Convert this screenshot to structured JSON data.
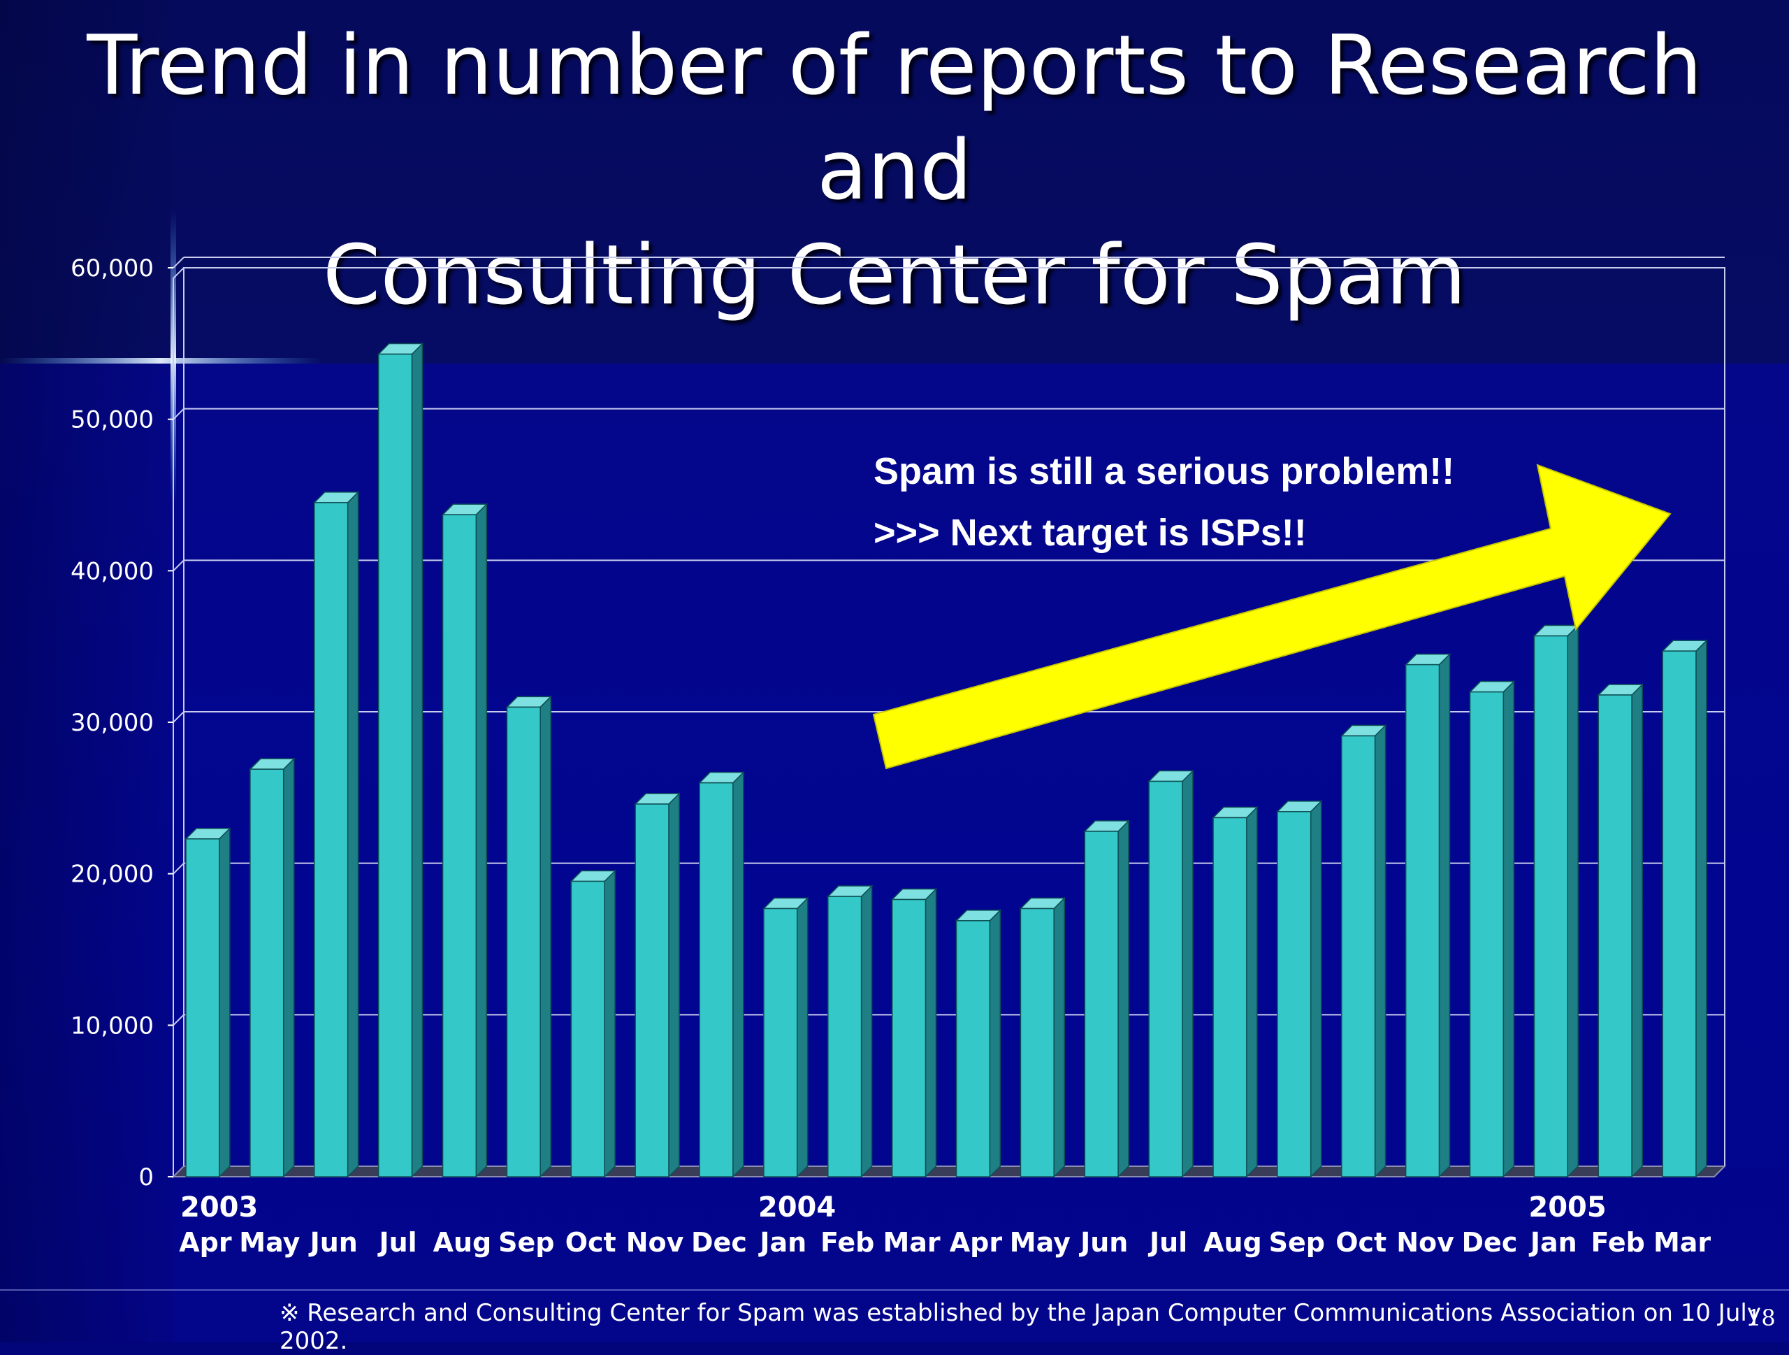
{
  "title_line1": "Trend in number of reports to Research and",
  "title_line2": "Consulting Center for Spam",
  "callout": {
    "line1": "Spam is still a serious problem!!",
    "line2": ">>> Next target is ISPs!!"
  },
  "footnote": "※ Research and Consulting Center for Spam was established by the Japan Computer Communications Association on 10 July 2002.",
  "page_number": "18",
  "colors": {
    "bar_front": "#35c8c8",
    "bar_side": "#1e7f84",
    "bar_top": "#7ee0e0",
    "arrow": "#ffff00",
    "gridline": "#c8ccee"
  },
  "chart_data": {
    "type": "bar",
    "categories": [
      "Apr",
      "May",
      "Jun",
      "Jul",
      "Aug",
      "Sep",
      "Oct",
      "Nov",
      "Dec",
      "Jan",
      "Feb",
      "Mar",
      "Apr",
      "May",
      "Jun",
      "Jul",
      "Aug",
      "Sep",
      "Oct",
      "Nov",
      "Dec",
      "Jan",
      "Feb",
      "Mar"
    ],
    "year_labels": [
      {
        "label": "2003",
        "index": 0
      },
      {
        "label": "2004",
        "index": 9
      },
      {
        "label": "2005",
        "index": 21
      }
    ],
    "values": [
      22300,
      26900,
      44500,
      54300,
      43700,
      31000,
      19500,
      24600,
      26000,
      17700,
      18500,
      18300,
      16900,
      17700,
      22800,
      26100,
      23700,
      24100,
      29100,
      33800,
      32000,
      35700,
      31800,
      34700
    ],
    "y_ticks": [
      "0",
      "10,000",
      "20,000",
      "30,000",
      "40,000",
      "50,000",
      "60,000"
    ],
    "ylim": [
      0,
      60000
    ],
    "grid": true,
    "annotation_arrow": "up-right trend arrow"
  }
}
